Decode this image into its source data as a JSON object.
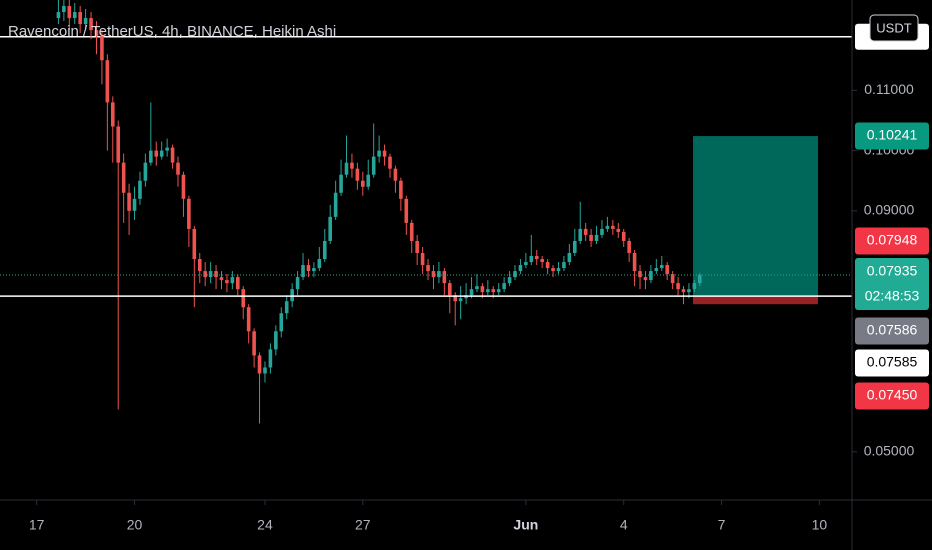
{
  "chart_data": {
    "type": "candlestick",
    "title": "Ravencoin / TetherUS, 4h, BINANCE, Heikin Ashi",
    "currency_button": "USDT",
    "up_color": "#26a69a",
    "down_color": "#ef5350",
    "x": [
      16,
      20,
      24,
      28,
      32,
      36,
      40,
      44,
      48,
      52,
      56,
      60,
      64,
      68,
      72,
      76,
      80,
      84,
      88,
      92,
      96,
      100,
      104,
      108,
      112,
      116,
      120,
      124,
      128,
      132,
      136,
      140,
      144,
      148,
      152,
      156,
      160,
      164,
      168,
      172,
      176,
      180,
      184,
      188,
      192,
      196,
      200,
      204,
      208,
      212,
      216,
      220,
      224,
      228,
      232,
      236,
      240,
      244,
      248,
      252,
      256,
      260,
      264,
      268,
      272,
      276,
      280,
      284,
      288,
      292,
      296,
      300,
      304,
      308,
      312,
      316,
      320,
      324,
      328,
      332,
      336,
      340,
      344,
      348,
      352,
      356,
      360,
      364,
      368,
      372,
      376,
      380,
      384,
      388,
      392,
      396,
      400,
      404,
      408,
      412,
      416,
      420,
      424,
      428,
      432,
      436,
      440,
      444,
      448,
      452,
      456,
      460,
      464,
      468,
      472,
      476,
      480,
      484,
      488
    ],
    "candles": [
      [
        0.122,
        0.125,
        0.121,
        0.123
      ],
      [
        0.123,
        0.1255,
        0.1215,
        0.124
      ],
      [
        0.124,
        0.125,
        0.12,
        0.122
      ],
      [
        0.122,
        0.1245,
        0.121,
        0.123
      ],
      [
        0.123,
        0.124,
        0.1195,
        0.121
      ],
      [
        0.121,
        0.1235,
        0.12,
        0.122
      ],
      [
        0.122,
        0.123,
        0.1185,
        0.12
      ],
      [
        0.12,
        0.1215,
        0.116,
        0.119
      ],
      [
        0.119,
        0.12,
        0.111,
        0.115
      ],
      [
        0.115,
        0.116,
        0.1,
        0.108
      ],
      [
        0.108,
        0.109,
        0.098,
        0.104
      ],
      [
        0.104,
        0.105,
        0.057,
        0.098
      ],
      [
        0.098,
        0.0995,
        0.088,
        0.093
      ],
      [
        0.093,
        0.0945,
        0.086,
        0.09
      ],
      [
        0.09,
        0.094,
        0.0885,
        0.092
      ],
      [
        0.092,
        0.0965,
        0.091,
        0.095
      ],
      [
        0.095,
        0.0995,
        0.094,
        0.098
      ],
      [
        0.098,
        0.108,
        0.0975,
        0.1
      ],
      [
        0.1,
        0.1015,
        0.0975,
        0.099
      ],
      [
        0.099,
        0.1015,
        0.0985,
        0.1
      ],
      [
        0.1,
        0.102,
        0.099,
        0.1005
      ],
      [
        0.1005,
        0.101,
        0.097,
        0.098
      ],
      [
        0.098,
        0.099,
        0.094,
        0.096
      ],
      [
        0.096,
        0.0965,
        0.089,
        0.092
      ],
      [
        0.092,
        0.0925,
        0.084,
        0.087
      ],
      [
        0.087,
        0.0875,
        0.074,
        0.082
      ],
      [
        0.082,
        0.083,
        0.078,
        0.08
      ],
      [
        0.08,
        0.0815,
        0.0775,
        0.079
      ],
      [
        0.079,
        0.0815,
        0.078,
        0.08
      ],
      [
        0.08,
        0.081,
        0.077,
        0.079
      ],
      [
        0.079,
        0.08,
        0.077,
        0.0785
      ],
      [
        0.0785,
        0.0795,
        0.0765,
        0.078
      ],
      [
        0.078,
        0.08,
        0.077,
        0.079
      ],
      [
        0.079,
        0.0795,
        0.076,
        0.077
      ],
      [
        0.077,
        0.0775,
        0.072,
        0.074
      ],
      [
        0.074,
        0.0745,
        0.068,
        0.07
      ],
      [
        0.07,
        0.0705,
        0.064,
        0.066
      ],
      [
        0.066,
        0.0665,
        0.0547,
        0.063
      ],
      [
        0.063,
        0.065,
        0.0615,
        0.064
      ],
      [
        0.064,
        0.068,
        0.063,
        0.067
      ],
      [
        0.067,
        0.071,
        0.066,
        0.07
      ],
      [
        0.07,
        0.074,
        0.069,
        0.073
      ],
      [
        0.073,
        0.076,
        0.072,
        0.075
      ],
      [
        0.075,
        0.078,
        0.074,
        0.077
      ],
      [
        0.077,
        0.08,
        0.076,
        0.079
      ],
      [
        0.079,
        0.083,
        0.0785,
        0.081
      ],
      [
        0.081,
        0.082,
        0.079,
        0.08
      ],
      [
        0.08,
        0.0815,
        0.079,
        0.0805
      ],
      [
        0.0805,
        0.084,
        0.08,
        0.082
      ],
      [
        0.082,
        0.087,
        0.0815,
        0.085
      ],
      [
        0.085,
        0.091,
        0.0845,
        0.089
      ],
      [
        0.089,
        0.095,
        0.0885,
        0.093
      ],
      [
        0.093,
        0.0985,
        0.0925,
        0.096
      ],
      [
        0.096,
        0.1025,
        0.0955,
        0.098
      ],
      [
        0.098,
        0.0995,
        0.0955,
        0.097
      ],
      [
        0.097,
        0.098,
        0.0935,
        0.095
      ],
      [
        0.095,
        0.0965,
        0.0925,
        0.094
      ],
      [
        0.094,
        0.0985,
        0.0935,
        0.096
      ],
      [
        0.096,
        0.1045,
        0.0955,
        0.099
      ],
      [
        0.099,
        0.1025,
        0.098,
        0.1
      ],
      [
        0.1,
        0.101,
        0.0975,
        0.099
      ],
      [
        0.099,
        0.0995,
        0.0955,
        0.097
      ],
      [
        0.097,
        0.0975,
        0.093,
        0.095
      ],
      [
        0.095,
        0.0955,
        0.09,
        0.092
      ],
      [
        0.092,
        0.0925,
        0.086,
        0.088
      ],
      [
        0.088,
        0.0885,
        0.083,
        0.085
      ],
      [
        0.085,
        0.086,
        0.081,
        0.083
      ],
      [
        0.083,
        0.084,
        0.0795,
        0.081
      ],
      [
        0.081,
        0.082,
        0.0785,
        0.08
      ],
      [
        0.08,
        0.081,
        0.077,
        0.079
      ],
      [
        0.079,
        0.0815,
        0.078,
        0.08
      ],
      [
        0.08,
        0.0805,
        0.076,
        0.078
      ],
      [
        0.078,
        0.0785,
        0.073,
        0.076
      ],
      [
        0.076,
        0.0765,
        0.071,
        0.075
      ],
      [
        0.075,
        0.0775,
        0.072,
        0.0755
      ],
      [
        0.0755,
        0.078,
        0.0745,
        0.076
      ],
      [
        0.076,
        0.079,
        0.0755,
        0.077
      ],
      [
        0.077,
        0.0795,
        0.0765,
        0.0775
      ],
      [
        0.0775,
        0.078,
        0.0755,
        0.0765
      ],
      [
        0.0765,
        0.0785,
        0.076,
        0.077
      ],
      [
        0.077,
        0.0775,
        0.0755,
        0.0765
      ],
      [
        0.0765,
        0.078,
        0.076,
        0.077
      ],
      [
        0.077,
        0.079,
        0.0765,
        0.078
      ],
      [
        0.078,
        0.08,
        0.0775,
        0.079
      ],
      [
        0.079,
        0.081,
        0.0785,
        0.08
      ],
      [
        0.08,
        0.082,
        0.0795,
        0.081
      ],
      [
        0.081,
        0.083,
        0.0805,
        0.0815
      ],
      [
        0.0815,
        0.086,
        0.081,
        0.0825
      ],
      [
        0.0825,
        0.0835,
        0.081,
        0.082
      ],
      [
        0.082,
        0.0825,
        0.0805,
        0.0815
      ],
      [
        0.0815,
        0.082,
        0.0795,
        0.0805
      ],
      [
        0.0805,
        0.081,
        0.079,
        0.08
      ],
      [
        0.08,
        0.0815,
        0.0795,
        0.0805
      ],
      [
        0.0805,
        0.0825,
        0.08,
        0.0815
      ],
      [
        0.0815,
        0.0845,
        0.081,
        0.083
      ],
      [
        0.083,
        0.087,
        0.0825,
        0.085
      ],
      [
        0.085,
        0.0915,
        0.0845,
        0.087
      ],
      [
        0.087,
        0.088,
        0.085,
        0.086
      ],
      [
        0.086,
        0.087,
        0.084,
        0.085
      ],
      [
        0.085,
        0.0875,
        0.0845,
        0.086
      ],
      [
        0.086,
        0.0885,
        0.0855,
        0.087
      ],
      [
        0.087,
        0.089,
        0.0865,
        0.0875
      ],
      [
        0.0875,
        0.0885,
        0.086,
        0.087
      ],
      [
        0.087,
        0.088,
        0.0855,
        0.0865
      ],
      [
        0.0865,
        0.087,
        0.084,
        0.085
      ],
      [
        0.085,
        0.0855,
        0.0815,
        0.083
      ],
      [
        0.083,
        0.0835,
        0.0775,
        0.08
      ],
      [
        0.08,
        0.081,
        0.077,
        0.079
      ],
      [
        0.079,
        0.08,
        0.077,
        0.0785
      ],
      [
        0.0785,
        0.081,
        0.078,
        0.08
      ],
      [
        0.08,
        0.082,
        0.0795,
        0.0805
      ],
      [
        0.0805,
        0.0825,
        0.08,
        0.081
      ],
      [
        0.081,
        0.0815,
        0.0785,
        0.0795
      ],
      [
        0.0795,
        0.08,
        0.077,
        0.078
      ],
      [
        0.078,
        0.079,
        0.076,
        0.077
      ],
      [
        0.077,
        0.0775,
        0.0745,
        0.0765
      ],
      [
        0.0765,
        0.078,
        0.0755,
        0.077
      ],
      [
        0.077,
        0.0785,
        0.0765,
        0.078
      ],
      [
        0.078,
        0.0797,
        0.0775,
        0.07935
      ]
    ],
    "xlim": [
      -27,
      600
    ],
    "xticks": [
      {
        "value": 0,
        "label": "17"
      },
      {
        "value": 72,
        "label": "20"
      },
      {
        "value": 168,
        "label": "24"
      },
      {
        "value": 240,
        "label": "27"
      },
      {
        "value": 360,
        "label": "Jun"
      },
      {
        "value": 432,
        "label": "4"
      },
      {
        "value": 504,
        "label": "7"
      },
      {
        "value": 576,
        "label": "10"
      }
    ],
    "ylim": [
      0.042,
      0.125
    ],
    "yticks": [
      {
        "value": 0.11,
        "label": "0.11000"
      },
      {
        "value": 0.1,
        "label": "0.10000"
      },
      {
        "value": 0.09,
        "label": "0.09000"
      },
      {
        "value": 0.05,
        "label": "0.05000"
      }
    ],
    "hline_top": 0.1189,
    "position": {
      "x": [
        483,
        575
      ],
      "target": 0.10241,
      "entry": 0.07586,
      "stop": 0.0745,
      "profit_color": "#00796b",
      "loss_color": "#b2282c"
    },
    "price_labels": [
      {
        "value": 0.10241,
        "label": "0.10241",
        "color": "#089981"
      },
      {
        "value": 0.07948,
        "label": "0.07948",
        "color": "#f23645"
      },
      {
        "value": 0.07935,
        "label": "0.07935",
        "color": "#22ab94",
        "countdown": "02:48:53"
      },
      {
        "value": 0.07586,
        "label": "0.07586",
        "color": "#787b86"
      },
      {
        "value": 0.07585,
        "label": "0.07585",
        "color": "#ffffff"
      },
      {
        "value": 0.0745,
        "label": "0.07450",
        "color": "#f23645"
      }
    ]
  }
}
